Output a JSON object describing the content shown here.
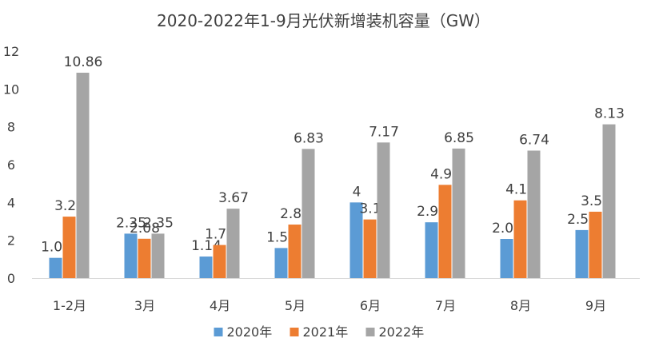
{
  "chart_data": {
    "type": "bar",
    "title": "2020-2022年1-9月光伏新增装机容量（GW）",
    "categories": [
      "1-2月",
      "3月",
      "4月",
      "5月",
      "6月",
      "7月",
      "8月",
      "9月"
    ],
    "series": [
      {
        "name": "2020年",
        "color": "#5b9bd5",
        "values": [
          1.07,
          2.35,
          1.14,
          1.59,
          4,
          2.95,
          2.07,
          2.54
        ]
      },
      {
        "name": "2021年",
        "color": "#ed7d31",
        "values": [
          3.25,
          2.08,
          1.75,
          2.83,
          3.1,
          4.93,
          4.11,
          3.51
        ]
      },
      {
        "name": "2022年",
        "color": "#a5a5a5",
        "values": [
          10.86,
          2.35,
          3.67,
          6.83,
          7.17,
          6.85,
          6.74,
          8.13
        ]
      }
    ],
    "yticks": [
      "0",
      "2",
      "4",
      "6",
      "8",
      "10",
      "12"
    ],
    "ylim": [
      0,
      12
    ],
    "legend_position": "bottom",
    "grid": false
  }
}
